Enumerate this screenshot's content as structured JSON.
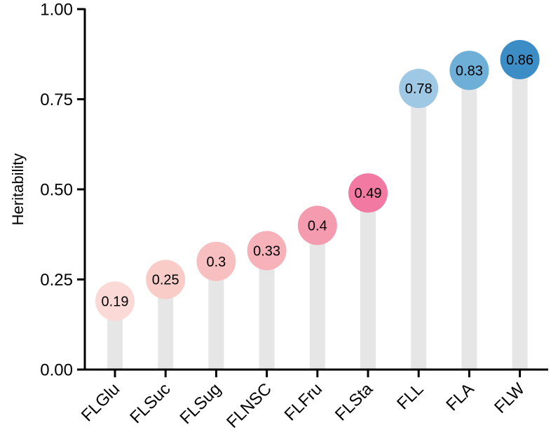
{
  "chart_data": {
    "type": "lollipop",
    "title": "",
    "xlabel": "",
    "ylabel": "Heritability",
    "ylim": [
      0,
      1
    ],
    "yticks": [
      "0.00",
      "0.25",
      "0.50",
      "0.75",
      "1.00"
    ],
    "ytick_values": [
      0,
      0.25,
      0.5,
      0.75,
      1.0
    ],
    "categories": [
      "FLGlu",
      "FLSuc",
      "FLSug",
      "FLNSC",
      "FLFru",
      "FLSta",
      "FLL",
      "FLA",
      "FLW"
    ],
    "values": [
      0.19,
      0.25,
      0.3,
      0.33,
      0.4,
      0.49,
      0.78,
      0.83,
      0.86
    ],
    "data_labels": [
      "0.19",
      "0.25",
      "0.3",
      "0.33",
      "0.4",
      "0.49",
      "0.78",
      "0.83",
      "0.86"
    ],
    "colors": [
      "#fbd9d6",
      "#f9ccc8",
      "#f8bfc0",
      "#f6b1b9",
      "#f59bb0",
      "#f27aa2",
      "#9ec8e3",
      "#6eafd8",
      "#3c8dc6"
    ],
    "stem_color": "#e6e6e6",
    "grid": false,
    "legend": "none"
  }
}
